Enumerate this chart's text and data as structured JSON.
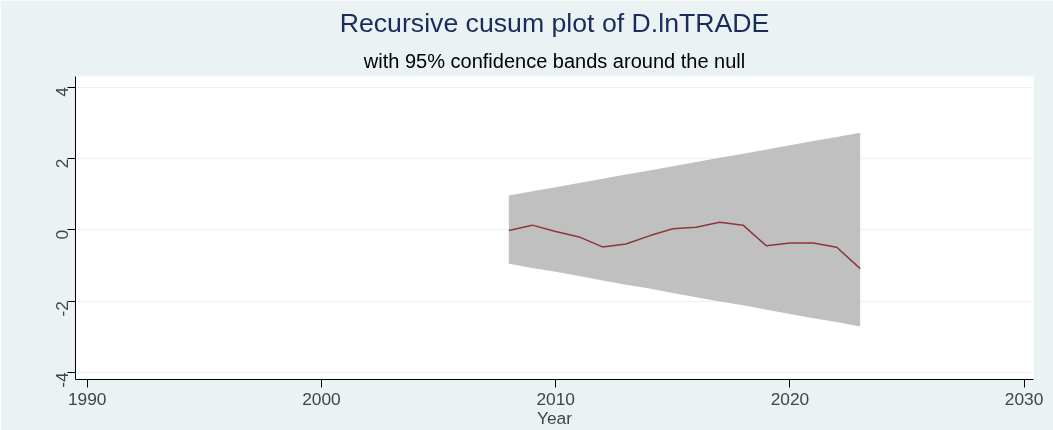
{
  "chart_data": {
    "type": "line",
    "title": "Recursive cusum plot of D.lnTRADE",
    "subtitle": "with 95% confidence bands around the null",
    "xlabel": "Year",
    "xlim": [
      1989.5,
      2030.4
    ],
    "xticks": [
      1990,
      2000,
      2010,
      2020,
      2030
    ],
    "ylim": [
      -4.2,
      4.3
    ],
    "yticks": [
      -4,
      -2,
      0,
      2,
      4
    ],
    "grid": "y",
    "series": [
      {
        "color": "#90353b",
        "x": [
          2008,
          2009,
          2010,
          2011,
          2012,
          2013,
          2014,
          2015,
          2016,
          2017,
          2018,
          2019,
          2020,
          2021,
          2022,
          2023
        ],
        "values": [
          -0.02,
          0.13,
          -0.05,
          -0.2,
          -0.48,
          -0.4,
          -0.17,
          0.03,
          0.07,
          0.21,
          0.13,
          -0.45,
          -0.37,
          -0.37,
          -0.49,
          -1.09
        ],
        "lower": [
          -0.95,
          -1.07,
          -1.18,
          -1.3,
          -1.42,
          -1.54,
          -1.65,
          -1.77,
          -1.89,
          -2.01,
          -2.12,
          -2.24,
          -2.36,
          -2.48,
          -2.59,
          -2.71
        ],
        "upper": [
          0.96,
          1.08,
          1.19,
          1.31,
          1.43,
          1.55,
          1.66,
          1.78,
          1.9,
          2.02,
          2.13,
          2.25,
          2.37,
          2.49,
          2.6,
          2.72
        ]
      }
    ]
  }
}
